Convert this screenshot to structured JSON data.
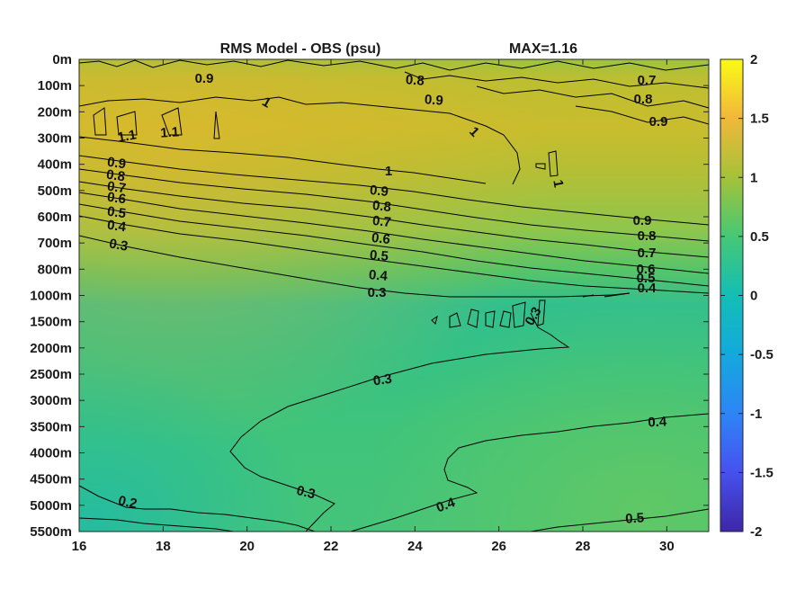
{
  "chart_data": {
    "type": "heatmap",
    "title": "RMS Model - OBS (psu)",
    "max_label": "MAX=1.16",
    "x_ticks": [
      "16",
      "18",
      "20",
      "22",
      "24",
      "26",
      "28",
      "30"
    ],
    "x_values": [
      16,
      18,
      20,
      22,
      24,
      26,
      28,
      30
    ],
    "xlim": [
      16,
      31
    ],
    "y_ticks": [
      "0m",
      "100m",
      "200m",
      "300m",
      "400m",
      "500m",
      "600m",
      "700m",
      "800m",
      "1000m",
      "1500m",
      "2000m",
      "2500m",
      "3000m",
      "3500m",
      "4000m",
      "4500m",
      "5000m",
      "5500m"
    ],
    "colorbar": {
      "ticks": [
        "2",
        "1.5",
        "1",
        "0.5",
        "0",
        "-0.5",
        "-1",
        "-1.5",
        "-2"
      ],
      "range": [
        -2,
        2
      ]
    },
    "contour_labels": [
      "0.9",
      "0.8",
      "0.9",
      "0.7",
      "0.8",
      "0.9",
      "1",
      "1.1",
      "1.1",
      "1",
      "1",
      "0.9",
      "0.8",
      "0.7",
      "0.6",
      "0.5",
      "0.4",
      "0.3",
      "0.9",
      "0.8",
      "0.7",
      "0.6",
      "0.5",
      "0.4",
      "0.3",
      "0.9",
      "0.8",
      "0.7",
      "0.6",
      "0.5",
      "0.4",
      "1",
      "0.3",
      "0.3",
      "0.4",
      "0.3",
      "0.2",
      "0.4",
      "0.5"
    ]
  }
}
